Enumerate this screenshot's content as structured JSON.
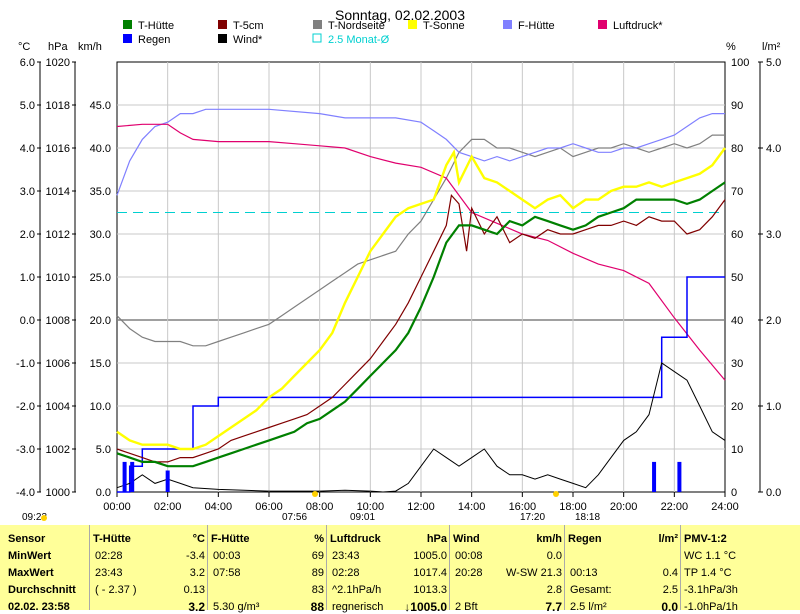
{
  "chart_data": {
    "type": "line",
    "title": "Sonntag, 02.02.2003",
    "x_ticks": [
      "00:00",
      "02:00",
      "04:00",
      "06:00",
      "08:00",
      "10:00",
      "12:00",
      "14:00",
      "16:00",
      "18:00",
      "20:00",
      "22:00",
      "24:00"
    ],
    "xlim_hours": [
      0,
      24
    ],
    "y_axes": {
      "celsius": {
        "unit": "°C",
        "ticks": [
          "6.0",
          "5.0",
          "4.0",
          "3.0",
          "2.0",
          "1.0",
          "0.0",
          "-1.0",
          "-2.0",
          "-3.0",
          "-4.0"
        ],
        "range": [
          -4,
          6
        ]
      },
      "hpa": {
        "unit": "hPa",
        "ticks": [
          "1020",
          "1018",
          "1016",
          "1014",
          "1012",
          "1010",
          "1008",
          "1006",
          "1004",
          "1002",
          "1000"
        ],
        "range": [
          1000,
          1020
        ]
      },
      "kmh": {
        "unit": "km/h",
        "ticks": [
          "45.0",
          "40.0",
          "35.0",
          "30.0",
          "25.0",
          "20.0",
          "15.0",
          "10.0",
          "5.0",
          "0.0"
        ],
        "range": [
          0,
          50
        ]
      },
      "percent": {
        "unit": "%",
        "ticks": [
          "100",
          "90",
          "80",
          "70",
          "60",
          "50",
          "40",
          "30",
          "20",
          "10",
          "0"
        ],
        "range": [
          0,
          100
        ]
      },
      "rain": {
        "unit": "l/m²",
        "ticks": [
          "5.0",
          "4.0",
          "3.0",
          "2.0",
          "1.0",
          "0.0"
        ],
        "range": [
          0,
          5
        ]
      }
    },
    "grid": true,
    "legend": [
      {
        "name": "T-Hütte",
        "color": "#008000"
      },
      {
        "name": "T-5cm",
        "color": "#800000"
      },
      {
        "name": "T-Nordseite",
        "color": "#808080"
      },
      {
        "name": "T-Sonne",
        "color": "#ffff00"
      },
      {
        "name": "F-Hütte",
        "color": "#8080ff"
      },
      {
        "name": "Luftdruck*",
        "color": "#e0006e"
      },
      {
        "name": "Regen",
        "color": "#0000ff"
      },
      {
        "name": "Wind*",
        "color": "#000000"
      },
      {
        "name": "2.5 Monat-Ø",
        "color": "#00d0d0"
      }
    ],
    "monthly_avg_c": 2.5,
    "series": [
      {
        "name": "T-Hütte",
        "axis": "celsius",
        "color": "#008000",
        "x": [
          0,
          0.5,
          1,
          1.5,
          2,
          2.5,
          3,
          3.5,
          4,
          4.5,
          5,
          5.5,
          6,
          6.5,
          7,
          7.5,
          8,
          8.5,
          9,
          9.5,
          10,
          10.5,
          11,
          11.5,
          12,
          12.5,
          13,
          13.5,
          14,
          14.5,
          15,
          15.5,
          16,
          16.5,
          17,
          17.5,
          18,
          18.5,
          19,
          19.5,
          20,
          20.5,
          21,
          21.5,
          22,
          22.5,
          23,
          23.5,
          24
        ],
        "y": [
          -3.1,
          -3.2,
          -3.3,
          -3.3,
          -3.4,
          -3.4,
          -3.4,
          -3.3,
          -3.2,
          -3.1,
          -3.0,
          -2.9,
          -2.8,
          -2.7,
          -2.6,
          -2.4,
          -2.3,
          -2.1,
          -1.9,
          -1.6,
          -1.3,
          -1.0,
          -0.7,
          -0.3,
          0.3,
          1.0,
          1.8,
          2.2,
          2.2,
          2.1,
          2.0,
          2.3,
          2.2,
          2.4,
          2.3,
          2.2,
          2.1,
          2.2,
          2.4,
          2.5,
          2.6,
          2.8,
          2.8,
          2.8,
          2.8,
          2.7,
          2.8,
          3.0,
          3.2
        ]
      },
      {
        "name": "T-5cm",
        "axis": "celsius",
        "color": "#800000",
        "x": [
          0,
          0.5,
          1,
          1.5,
          2,
          2.5,
          3,
          3.5,
          4,
          4.5,
          5,
          5.5,
          6,
          6.5,
          7,
          7.5,
          8,
          8.5,
          9,
          9.5,
          10,
          10.5,
          11,
          11.5,
          12,
          12.5,
          13,
          13.2,
          13.5,
          13.8,
          14,
          14.5,
          15,
          15.5,
          16,
          16.5,
          17,
          17.5,
          18,
          18.5,
          19,
          19.5,
          20,
          20.5,
          21,
          21.5,
          22,
          22.5,
          23,
          23.5,
          24
        ],
        "y": [
          -3.0,
          -3.1,
          -3.2,
          -3.3,
          -3.3,
          -3.2,
          -3.2,
          -3.1,
          -3.0,
          -2.8,
          -2.7,
          -2.6,
          -2.5,
          -2.4,
          -2.3,
          -2.2,
          -2.0,
          -1.8,
          -1.5,
          -1.2,
          -0.9,
          -0.5,
          -0.1,
          0.4,
          1.0,
          1.6,
          2.2,
          2.9,
          2.7,
          1.6,
          2.6,
          2.0,
          2.4,
          1.8,
          2.0,
          1.9,
          2.1,
          2.0,
          2.0,
          2.1,
          2.2,
          2.2,
          2.3,
          2.2,
          2.4,
          2.3,
          2.3,
          2.0,
          2.1,
          2.4,
          2.8
        ]
      },
      {
        "name": "T-Nordseite",
        "axis": "celsius",
        "color": "#808080",
        "x": [
          0,
          0.5,
          1,
          1.5,
          2,
          2.5,
          3,
          3.5,
          4,
          4.5,
          5,
          5.5,
          6,
          6.5,
          7,
          7.5,
          8,
          8.5,
          9,
          9.5,
          10,
          10.5,
          11,
          11.5,
          12,
          12.5,
          13,
          13.5,
          14,
          14.5,
          15,
          15.5,
          16,
          16.5,
          17,
          17.5,
          18,
          18.5,
          19,
          19.5,
          20,
          20.5,
          21,
          21.5,
          22,
          22.5,
          23,
          23.5,
          24
        ],
        "y": [
          0.1,
          -0.2,
          -0.4,
          -0.5,
          -0.5,
          -0.5,
          -0.6,
          -0.6,
          -0.5,
          -0.4,
          -0.3,
          -0.2,
          -0.1,
          0.1,
          0.3,
          0.5,
          0.7,
          0.9,
          1.1,
          1.3,
          1.4,
          1.5,
          1.6,
          2.0,
          2.3,
          2.8,
          3.3,
          3.9,
          4.2,
          4.2,
          4.0,
          4.0,
          3.9,
          3.8,
          3.9,
          4.0,
          3.8,
          3.9,
          4.0,
          4.0,
          4.1,
          4.0,
          3.9,
          4.0,
          4.1,
          4.0,
          4.1,
          4.3,
          4.3
        ]
      },
      {
        "name": "T-Sonne",
        "axis": "celsius",
        "color": "#ffff00",
        "x": [
          0,
          0.5,
          1,
          1.5,
          2,
          2.5,
          3,
          3.5,
          4,
          4.5,
          5,
          5.5,
          6,
          6.5,
          7,
          7.5,
          8,
          8.5,
          9,
          9.5,
          10,
          10.5,
          11,
          11.5,
          12,
          12.5,
          13,
          13.3,
          13.5,
          14,
          14.5,
          15,
          15.5,
          16,
          16.5,
          17,
          17.5,
          18,
          18.5,
          19,
          19.5,
          20,
          20.5,
          21,
          21.5,
          22,
          22.5,
          23,
          23.5,
          24
        ],
        "y": [
          -2.6,
          -2.8,
          -2.9,
          -2.9,
          -2.9,
          -3.0,
          -3.0,
          -2.9,
          -2.7,
          -2.5,
          -2.3,
          -2.1,
          -1.8,
          -1.6,
          -1.3,
          -1.0,
          -0.7,
          -0.3,
          0.4,
          1.0,
          1.6,
          2.0,
          2.4,
          2.6,
          2.7,
          2.8,
          3.6,
          3.9,
          3.2,
          3.8,
          3.3,
          3.2,
          3.0,
          2.8,
          2.6,
          2.8,
          2.9,
          2.6,
          2.8,
          2.8,
          3.0,
          3.1,
          3.1,
          3.2,
          3.1,
          3.2,
          3.3,
          3.4,
          3.6,
          4.0
        ]
      },
      {
        "name": "F-Hütte",
        "axis": "percent",
        "color": "#8080ff",
        "x": [
          0,
          0.5,
          1,
          1.5,
          2,
          2.5,
          3,
          3.5,
          4,
          6,
          8,
          9,
          10,
          11,
          12,
          12.5,
          13,
          13.5,
          14,
          14.5,
          15,
          15.5,
          16,
          16.5,
          17,
          17.5,
          18,
          18.5,
          19,
          19.5,
          20,
          20.5,
          21,
          21.5,
          22,
          22.5,
          23,
          23.5,
          24
        ],
        "y": [
          69,
          77,
          82,
          85,
          86,
          88,
          88,
          89,
          89,
          89,
          88,
          87,
          87,
          87,
          86,
          84,
          82,
          79,
          78,
          77,
          78,
          77,
          78,
          79,
          80,
          80,
          81,
          80,
          79,
          79,
          80,
          80,
          81,
          82,
          83,
          85,
          87,
          88,
          88
        ]
      },
      {
        "name": "Luftdruck*",
        "axis": "hpa",
        "color": "#e0006e",
        "x": [
          0,
          1,
          2,
          2.5,
          3,
          4,
          5,
          6,
          7,
          8,
          9,
          10,
          11,
          12,
          13,
          14,
          15,
          16,
          17,
          18,
          19,
          20,
          21,
          22,
          23,
          24
        ],
        "y": [
          1017.0,
          1017.1,
          1017.1,
          1016.7,
          1016.4,
          1016.3,
          1016.3,
          1016.3,
          1016.2,
          1016.1,
          1016.0,
          1015.6,
          1015.3,
          1015.1,
          1014.6,
          1013.0,
          1012.5,
          1012.0,
          1011.7,
          1011.1,
          1010.6,
          1010.3,
          1009.7,
          1008.1,
          1006.6,
          1005.2
        ]
      },
      {
        "name": "Wind*",
        "axis": "kmh",
        "color": "#000000",
        "x": [
          0,
          0.5,
          1,
          1.5,
          2,
          2.5,
          3,
          4,
          6,
          8,
          9,
          10,
          10.5,
          11,
          11.5,
          12,
          12.5,
          13,
          13.5,
          14,
          14.5,
          15,
          15.5,
          16,
          16.5,
          17,
          17.5,
          18,
          18.5,
          19,
          19.5,
          20,
          20.5,
          21,
          21.5,
          22,
          22.5,
          23,
          23.5,
          24
        ],
        "y": [
          0.5,
          1.0,
          2.0,
          1.0,
          1.5,
          1.0,
          0.5,
          0.3,
          0.1,
          0.1,
          0.2,
          0.1,
          0.0,
          0.1,
          1.0,
          3.0,
          5.0,
          4.0,
          3.0,
          4.0,
          5.0,
          3.0,
          2.0,
          2.0,
          1.5,
          2.0,
          1.5,
          1.0,
          0.5,
          2.0,
          4.0,
          6.0,
          7.0,
          9.0,
          15.0,
          14.0,
          13.0,
          10.0,
          7.0,
          6.0
        ]
      },
      {
        "name": "Regen",
        "axis": "rain",
        "color": "#0000ff",
        "x": [
          0,
          0.5,
          1,
          2,
          3,
          4,
          6,
          8,
          10,
          12,
          14,
          16,
          18,
          19,
          20,
          21,
          21.5,
          22,
          22.5,
          23,
          24
        ],
        "y": [
          0.0,
          0.3,
          0.5,
          0.5,
          1.0,
          1.1,
          1.1,
          1.1,
          1.1,
          1.1,
          1.1,
          1.1,
          1.1,
          1.1,
          1.1,
          1.1,
          1.8,
          1.8,
          2.5,
          2.5,
          2.5
        ]
      },
      {
        "name": "Regen-Intensität",
        "axis": "rain",
        "color": "#0000ff",
        "type": "bar",
        "x": [
          0.3,
          0.6,
          2.0,
          21.2,
          22.2
        ],
        "y": [
          0.35,
          0.35,
          0.25,
          0.35,
          0.35
        ]
      }
    ],
    "bottom_markers": [
      "09:23",
      "07:56",
      "09:01",
      "17:20",
      "18:18"
    ]
  },
  "table": {
    "columns": [
      {
        "header": "Sensor",
        "unit": "",
        "rows": [
          {
            "label": "MinWert"
          },
          {
            "label": "MaxWert"
          },
          {
            "label": "Durchschnitt"
          },
          {
            "label": "02.02.  23:58"
          }
        ]
      },
      {
        "header": "T-Hütte",
        "unit": "°C",
        "rows": [
          {
            "a": "02:28",
            "b": "-3.4"
          },
          {
            "a": "23:43",
            "b": "3.2"
          },
          {
            "a": "( - 2.37 )",
            "b": "0.13"
          },
          {
            "a": "",
            "b": "3.2"
          }
        ]
      },
      {
        "header": "F-Hütte",
        "unit": "%",
        "rows": [
          {
            "a": "00:03",
            "b": "69"
          },
          {
            "a": "07:58",
            "b": "89"
          },
          {
            "a": "",
            "b": "83"
          },
          {
            "a": "5.30 g/m³",
            "b": "88"
          }
        ]
      },
      {
        "header": "Luftdruck",
        "unit": "hPa",
        "rows": [
          {
            "a": "23:43",
            "b": "1005.0"
          },
          {
            "a": "02:28",
            "b": "1017.4"
          },
          {
            "a": "^2.1hPa/h",
            "b": "1013.3"
          },
          {
            "a": "regnerisch",
            "b": "↓1005.0"
          }
        ]
      },
      {
        "header": "Wind",
        "unit": "km/h",
        "rows": [
          {
            "a": "00:08",
            "b": "0.0"
          },
          {
            "a": "20:28",
            "b": "W-SW 21.3"
          },
          {
            "a": "",
            "b": "2.8"
          },
          {
            "a": "2 Bft",
            "b": "7.7"
          }
        ]
      },
      {
        "header": "Regen",
        "unit": "l/m²",
        "rows": [
          {
            "a": "",
            "b": ""
          },
          {
            "a": "00:13",
            "b": "0.4"
          },
          {
            "a": "Gesamt:",
            "b": "2.5"
          },
          {
            "a": "2.5 l/m²",
            "b": "0.0"
          }
        ]
      },
      {
        "header": "PMV-1:2",
        "unit": "",
        "rows": [
          {
            "a": "WC 1.1 °C"
          },
          {
            "a": "TP 1.4 °C"
          },
          {
            "a": "-3.1hPa/3h"
          },
          {
            "a": "-1.0hPa/1h"
          }
        ]
      }
    ]
  }
}
